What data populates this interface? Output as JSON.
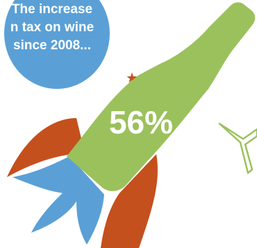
{
  "bubble": {
    "line1": "The increase",
    "line2": "n tax on wine",
    "line3": "since 2008...",
    "color": "#5aa0d6"
  },
  "bottle": {
    "percent": "56%",
    "color": "#9bc15c"
  },
  "rocket": {
    "fin_color": "#c4501d",
    "flame_color": "#5aa0d6"
  },
  "glass": {
    "stroke_color": "#9bc15c"
  },
  "star": {
    "color": "#c4501d"
  }
}
